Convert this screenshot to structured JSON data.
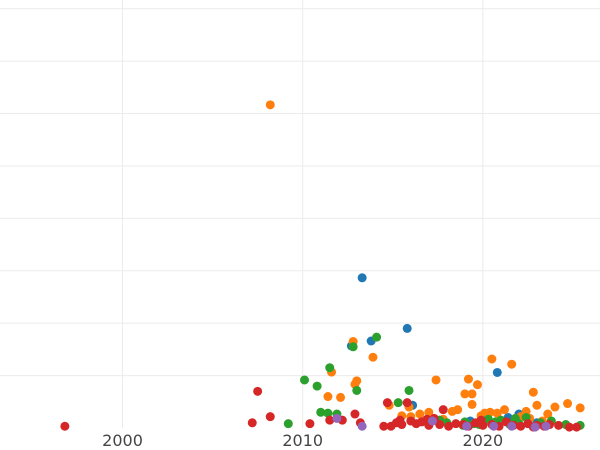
{
  "chart_data": {
    "type": "scatter",
    "title": "",
    "xlabel": "",
    "ylabel": "",
    "grid": true,
    "legend": "none",
    "xlim": [
      1993.2,
      2026.5
    ],
    "ylim": [
      0,
      2450
    ],
    "x_ticks": [
      2000,
      2010,
      2020
    ],
    "y_gridlines": [
      300,
      600,
      900,
      1200,
      1500,
      1800,
      2100,
      2400
    ],
    "colors": {
      "blue": "#1f77b4",
      "orange": "#ff7f0e",
      "green": "#2ca02c",
      "red": "#d62728",
      "purple": "#9467bd"
    },
    "series": [
      {
        "color": "blue",
        "points": [
          [
            2013.3,
            860
          ],
          [
            2013.8,
            498
          ],
          [
            2015.8,
            570
          ],
          [
            2016.1,
            130
          ],
          [
            2020.8,
            318
          ],
          [
            2021.4,
            60
          ],
          [
            2022.0,
            80
          ],
          [
            2012.7,
            470
          ],
          [
            2019.3,
            40
          ],
          [
            2023.0,
            30
          ]
        ]
      },
      {
        "color": "orange",
        "points": [
          [
            2008.2,
            1850
          ],
          [
            2011.6,
            320
          ],
          [
            2012.1,
            175
          ],
          [
            2012.8,
            495
          ],
          [
            2012.9,
            250
          ],
          [
            2013.0,
            270
          ],
          [
            2013.9,
            405
          ],
          [
            2014.8,
            130
          ],
          [
            2015.5,
            70
          ],
          [
            2016.0,
            65
          ],
          [
            2016.5,
            80
          ],
          [
            2017.0,
            90
          ],
          [
            2017.4,
            275
          ],
          [
            2018.3,
            95
          ],
          [
            2018.6,
            105
          ],
          [
            2019.0,
            195
          ],
          [
            2019.2,
            280
          ],
          [
            2019.4,
            195
          ],
          [
            2019.4,
            135
          ],
          [
            2019.7,
            248
          ],
          [
            2019.9,
            70
          ],
          [
            2020.1,
            85
          ],
          [
            2020.2,
            40
          ],
          [
            2020.4,
            90
          ],
          [
            2020.5,
            395
          ],
          [
            2020.8,
            85
          ],
          [
            2021.2,
            105
          ],
          [
            2021.6,
            365
          ],
          [
            2022.1,
            65
          ],
          [
            2022.6,
            55
          ],
          [
            2022.8,
            205
          ],
          [
            2023.0,
            130
          ],
          [
            2023.3,
            40
          ],
          [
            2023.6,
            80
          ],
          [
            2024.0,
            120
          ],
          [
            2024.7,
            140
          ],
          [
            2025.4,
            115
          ],
          [
            2011.4,
            180
          ],
          [
            2015.9,
            120
          ],
          [
            2021.9,
            30
          ],
          [
            2017.8,
            50
          ],
          [
            2022.4,
            95
          ]
        ]
      },
      {
        "color": "green",
        "points": [
          [
            2009.2,
            25
          ],
          [
            2010.1,
            275
          ],
          [
            2010.8,
            240
          ],
          [
            2011.0,
            90
          ],
          [
            2011.4,
            85
          ],
          [
            2011.5,
            345
          ],
          [
            2011.9,
            80
          ],
          [
            2012.8,
            465
          ],
          [
            2013.0,
            215
          ],
          [
            2014.1,
            520
          ],
          [
            2015.3,
            145
          ],
          [
            2015.9,
            215
          ],
          [
            2017.6,
            45
          ],
          [
            2018.0,
            30
          ],
          [
            2019.0,
            35
          ],
          [
            2019.5,
            25
          ],
          [
            2019.8,
            20
          ],
          [
            2020.0,
            40
          ],
          [
            2020.3,
            50
          ],
          [
            2020.7,
            35
          ],
          [
            2021.0,
            45
          ],
          [
            2021.5,
            20
          ],
          [
            2022.0,
            25
          ],
          [
            2022.4,
            60
          ],
          [
            2023.2,
            30
          ],
          [
            2023.8,
            40
          ],
          [
            2024.6,
            20
          ],
          [
            2025.4,
            15
          ],
          [
            2021.8,
            55
          ],
          [
            2018.9,
            15
          ]
        ]
      },
      {
        "color": "red",
        "points": [
          [
            1996.8,
            10
          ],
          [
            2007.2,
            30
          ],
          [
            2007.5,
            210
          ],
          [
            2008.2,
            65
          ],
          [
            2010.4,
            25
          ],
          [
            2011.5,
            45
          ],
          [
            2012.2,
            45
          ],
          [
            2012.9,
            80
          ],
          [
            2013.2,
            30
          ],
          [
            2014.5,
            10
          ],
          [
            2014.7,
            145
          ],
          [
            2014.9,
            10
          ],
          [
            2015.2,
            30
          ],
          [
            2015.5,
            20
          ],
          [
            2015.8,
            145
          ],
          [
            2016.0,
            40
          ],
          [
            2016.3,
            25
          ],
          [
            2016.6,
            35
          ],
          [
            2017.0,
            15
          ],
          [
            2017.3,
            55
          ],
          [
            2017.6,
            20
          ],
          [
            2017.8,
            105
          ],
          [
            2018.1,
            10
          ],
          [
            2018.5,
            25
          ],
          [
            2018.9,
            20
          ],
          [
            2019.2,
            10
          ],
          [
            2019.6,
            30
          ],
          [
            2020.0,
            15
          ],
          [
            2020.5,
            20
          ],
          [
            2020.9,
            10
          ],
          [
            2021.3,
            35
          ],
          [
            2021.7,
            15
          ],
          [
            2022.1,
            10
          ],
          [
            2022.5,
            25
          ],
          [
            2023.0,
            15
          ],
          [
            2023.4,
            10
          ],
          [
            2023.7,
            20
          ],
          [
            2024.2,
            15
          ],
          [
            2024.8,
            5
          ],
          [
            2025.2,
            5
          ],
          [
            2016.9,
            50
          ],
          [
            2019.9,
            45
          ],
          [
            2022.8,
            5
          ],
          [
            2015.4,
            45
          ]
        ]
      },
      {
        "color": "purple",
        "points": [
          [
            2011.9,
            55
          ],
          [
            2013.3,
            10
          ],
          [
            2017.2,
            40
          ],
          [
            2019.1,
            10
          ],
          [
            2020.6,
            10
          ],
          [
            2021.6,
            10
          ],
          [
            2022.9,
            5
          ],
          [
            2023.5,
            10
          ]
        ]
      }
    ]
  }
}
